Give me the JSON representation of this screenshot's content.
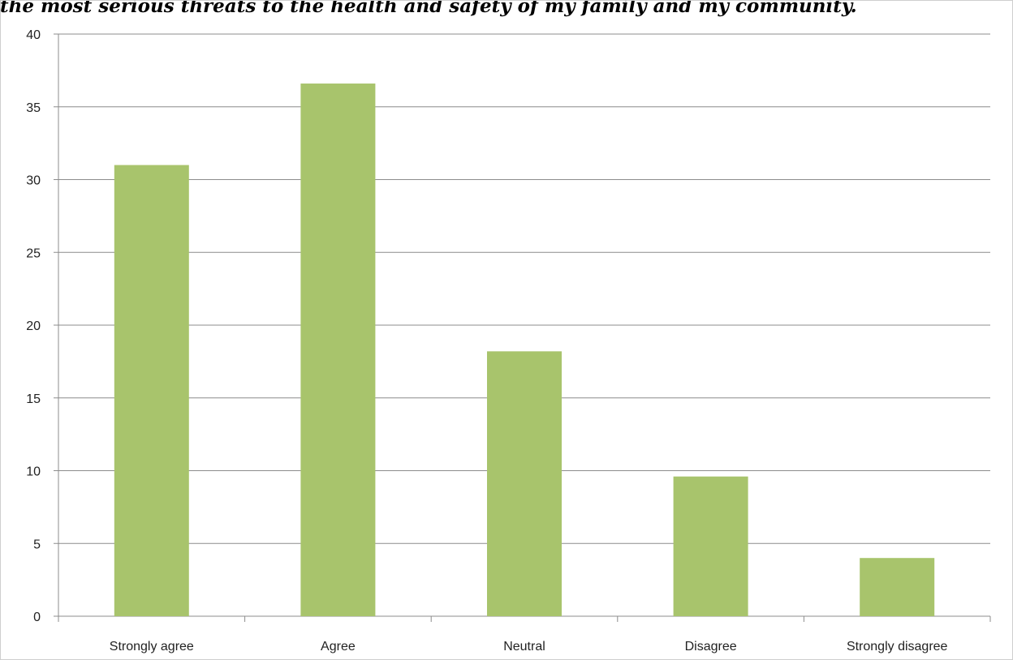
{
  "chart_data": {
    "type": "bar",
    "title": "the most serious threats to the health and safety of my family and my community.",
    "xlabel": "",
    "ylabel": "",
    "categories": [
      "Strongly agree",
      "Agree",
      "Neutral",
      "Disagree",
      "Strongly disagree"
    ],
    "series": [
      {
        "values": [
          31,
          36.6,
          18.2,
          9.6,
          4
        ]
      }
    ],
    "ylim": [
      0,
      40
    ],
    "yticks": [
      0,
      5,
      10,
      15,
      20,
      25,
      30,
      35,
      40
    ],
    "grid": true,
    "legend": "none",
    "colors": {
      "bar": "#a8c46c",
      "grid": "#8c8c8c",
      "axis": "#8c8c8c"
    }
  }
}
